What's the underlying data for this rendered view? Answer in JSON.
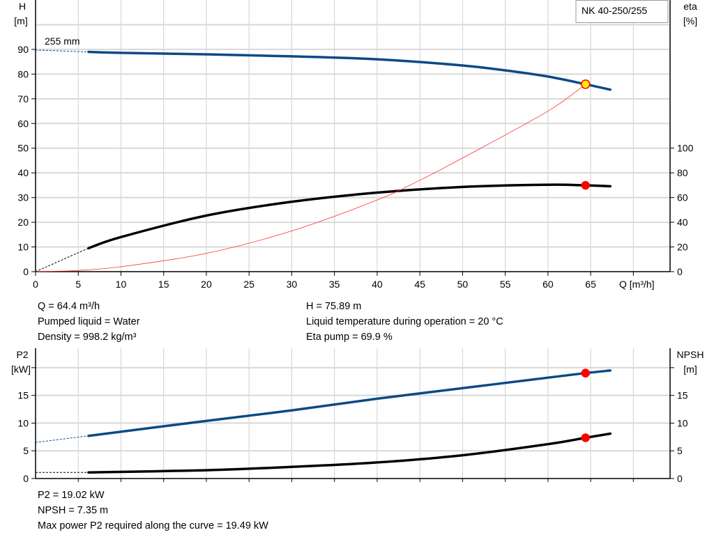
{
  "chart_data": [
    {
      "type": "line",
      "title": "NK 40-250/255",
      "xlabel": "Q [m³/h]",
      "ylabel": [
        "H",
        "[m]"
      ],
      "y2label": [
        "eta",
        "[%]"
      ],
      "xlim": [
        0,
        74.3
      ],
      "ylim": [
        0,
        110
      ],
      "y2lim": [
        0,
        220
      ],
      "x_ticks": [
        0,
        5,
        10,
        15,
        20,
        25,
        30,
        35,
        40,
        45,
        50,
        55,
        60,
        65
      ],
      "y_ticks": [
        0,
        10,
        20,
        30,
        40,
        50,
        60,
        70,
        80,
        90
      ],
      "y2_ticks": [
        0,
        20,
        40,
        60,
        80,
        100
      ],
      "grid": true,
      "annotation": "255 mm",
      "series": [
        {
          "id": "head",
          "axis": "y",
          "color": "#0b4a85",
          "x": [
            6.2,
            10,
            20,
            30,
            40,
            50,
            55,
            60,
            64.4,
            67.3
          ],
          "y": [
            89,
            88.6,
            88,
            87.2,
            86,
            83.5,
            81.5,
            79,
            75.89,
            73.7
          ],
          "dashed_start": [
            0,
            89.7
          ]
        },
        {
          "id": "efficiency",
          "axis": "y2",
          "color": "#000000",
          "x": [
            6.2,
            10,
            20,
            30,
            40,
            50,
            60,
            64.4,
            67.3
          ],
          "y": [
            19,
            28,
            45.4,
            56.6,
            64,
            68.6,
            70.4,
            69.9,
            69.2
          ],
          "dashed_start": [
            0,
            0
          ]
        },
        {
          "id": "system-curve",
          "axis": "y",
          "color": "#ff3030",
          "x": [
            0,
            5,
            10,
            20,
            30,
            40,
            45,
            50,
            60,
            64.4
          ],
          "y": [
            0,
            0.5,
            2,
            7.4,
            16.5,
            29,
            37,
            46,
            65,
            75.89
          ]
        }
      ],
      "duty_points": [
        {
          "series": "head",
          "x": 64.4,
          "y": 75.89,
          "fill": "#ffee00",
          "stroke": "#ff0000"
        },
        {
          "series": "efficiency",
          "x": 64.4,
          "y": 69.9,
          "fill": "#ff0000",
          "stroke": "#ff0000"
        }
      ]
    },
    {
      "type": "line",
      "ylabel": [
        "P2",
        "[kW]"
      ],
      "y2label": [
        "NPSH",
        "[m]"
      ],
      "xlim": [
        0,
        74.3
      ],
      "ylim": [
        0,
        23.5
      ],
      "y_ticks": [
        0,
        5,
        10,
        15,
        20
      ],
      "y_tick_labels": [
        "0",
        "5",
        "10",
        "15",
        ""
      ],
      "y2_ticks": [
        0,
        5,
        10,
        15,
        20
      ],
      "y2_tick_labels": [
        "0",
        "5",
        "10",
        "15",
        ""
      ],
      "grid": true,
      "series": [
        {
          "id": "power-p2",
          "color": "#0b4a85",
          "x": [
            6.2,
            20,
            30,
            40,
            50,
            60,
            64.4,
            67.3
          ],
          "y": [
            7.7,
            10.4,
            12.3,
            14.4,
            16.3,
            18.2,
            19.02,
            19.49
          ],
          "dashed_start": [
            0,
            6.5
          ]
        },
        {
          "id": "npsh",
          "color": "#000000",
          "x": [
            6.2,
            20,
            30,
            40,
            50,
            60,
            64.4,
            67.3
          ],
          "y": [
            1.1,
            1.5,
            2.1,
            2.9,
            4.2,
            6.2,
            7.35,
            8.1
          ],
          "dashed_start": [
            0,
            1.1
          ]
        }
      ],
      "duty_points": [
        {
          "series": "power-p2",
          "x": 64.4,
          "y": 19.02,
          "fill": "#ff0000",
          "stroke": "#ff0000"
        },
        {
          "series": "npsh",
          "x": 64.4,
          "y": 7.35,
          "fill": "#ff0000",
          "stroke": "#ff0000"
        }
      ]
    }
  ],
  "info_top": {
    "left": [
      "Q = 64.4 m³/h",
      "Pumped liquid = Water",
      "Density = 998.2 kg/m³"
    ],
    "right": [
      "H = 75.89 m",
      "Liquid temperature during operation = 20 °C",
      "Eta pump = 69.9 %"
    ]
  },
  "info_bottom": [
    "P2 = 19.02 kW",
    "NPSH = 7.35 m",
    "Max power P2 required along the curve = 19.49 kW"
  ]
}
